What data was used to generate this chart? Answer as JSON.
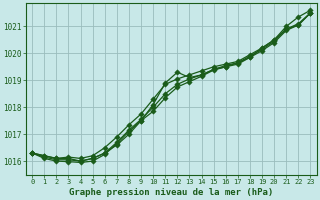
{
  "x": [
    0,
    1,
    2,
    3,
    4,
    5,
    6,
    7,
    8,
    9,
    10,
    11,
    12,
    13,
    14,
    15,
    16,
    17,
    18,
    19,
    20,
    21,
    22,
    23
  ],
  "line1": [
    1016.3,
    1016.2,
    1016.1,
    1016.1,
    1016.0,
    1016.1,
    1016.3,
    1016.6,
    1017.0,
    1017.5,
    1018.1,
    1018.9,
    1019.3,
    1019.1,
    1019.2,
    1019.4,
    1019.5,
    1019.65,
    1019.85,
    1020.2,
    1020.5,
    1021.0,
    1021.35,
    1021.6
  ],
  "line2": [
    1016.3,
    1016.2,
    1016.1,
    1016.15,
    1016.1,
    1016.2,
    1016.5,
    1016.9,
    1017.35,
    1017.75,
    1018.3,
    1018.85,
    1019.05,
    1019.2,
    1019.35,
    1019.5,
    1019.6,
    1019.7,
    1019.95,
    1020.2,
    1020.5,
    1020.9,
    1021.05,
    1021.5
  ],
  "line3": [
    1016.3,
    1016.15,
    1016.05,
    1016.05,
    1016.0,
    1016.1,
    1016.3,
    1016.7,
    1017.15,
    1017.55,
    1018.0,
    1018.5,
    1018.85,
    1019.05,
    1019.2,
    1019.4,
    1019.55,
    1019.65,
    1019.9,
    1020.15,
    1020.45,
    1020.9,
    1021.1,
    1021.5
  ],
  "line4": [
    1016.3,
    1016.1,
    1016.0,
    1015.98,
    1015.95,
    1016.0,
    1016.25,
    1016.65,
    1017.1,
    1017.5,
    1017.85,
    1018.35,
    1018.75,
    1018.95,
    1019.15,
    1019.38,
    1019.5,
    1019.6,
    1019.85,
    1020.1,
    1020.4,
    1020.85,
    1021.05,
    1021.5
  ],
  "line_color": "#1a5c1a",
  "bg_color": "#c8e8e8",
  "grid_color": "#9abcbc",
  "title": "Graphe pression niveau de la mer (hPa)",
  "ylim_min": 1015.5,
  "ylim_max": 1021.85,
  "yticks": [
    1016,
    1017,
    1018,
    1019,
    1020,
    1021
  ],
  "markersize": 2.8,
  "linewidth": 0.9
}
